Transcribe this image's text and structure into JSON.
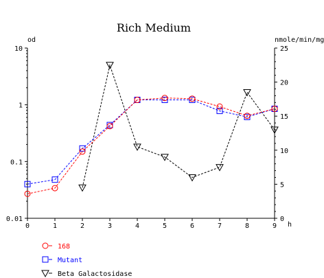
{
  "chart_data": {
    "type": "line",
    "title": "Rich Medium",
    "xlabel": "h",
    "ylabel": "od",
    "y2label": "nmole/min/mg",
    "xlim": [
      0,
      9
    ],
    "ylim": [
      0.01,
      10
    ],
    "yscale": "log",
    "y2lim": [
      0,
      25
    ],
    "x_ticks": [
      "0",
      "1",
      "2",
      "3",
      "4",
      "5",
      "6",
      "7",
      "8",
      "9"
    ],
    "y_ticks": [
      "10",
      "1",
      "0.1",
      "0.01"
    ],
    "y2_ticks": [
      "25",
      "20",
      "15",
      "10",
      "5",
      "0"
    ],
    "grid": false,
    "legend_position": "bottom-left",
    "series": [
      {
        "name": "168",
        "axis": "left",
        "color": "#ff0000",
        "marker": "circle",
        "x": [
          0,
          1,
          2,
          3,
          4,
          5,
          6,
          7,
          8,
          9
        ],
        "values": [
          0.027,
          0.034,
          0.15,
          0.42,
          1.22,
          1.32,
          1.28,
          0.93,
          0.64,
          0.85
        ]
      },
      {
        "name": "Mutant",
        "axis": "left",
        "color": "#0000ff",
        "marker": "square",
        "x": [
          0,
          1,
          2,
          3,
          4,
          5,
          6,
          7,
          8,
          9
        ],
        "values": [
          0.04,
          0.048,
          0.17,
          0.44,
          1.22,
          1.22,
          1.22,
          0.78,
          0.61,
          0.85
        ]
      },
      {
        "name": "Beta Galactosidase",
        "axis": "right",
        "color": "#000000",
        "marker": "triangle-down",
        "x": [
          2,
          3,
          4,
          5,
          6,
          7,
          8,
          9
        ],
        "values": [
          4.5,
          22.5,
          10.5,
          9,
          6,
          7.5,
          18.5,
          13
        ]
      }
    ]
  }
}
